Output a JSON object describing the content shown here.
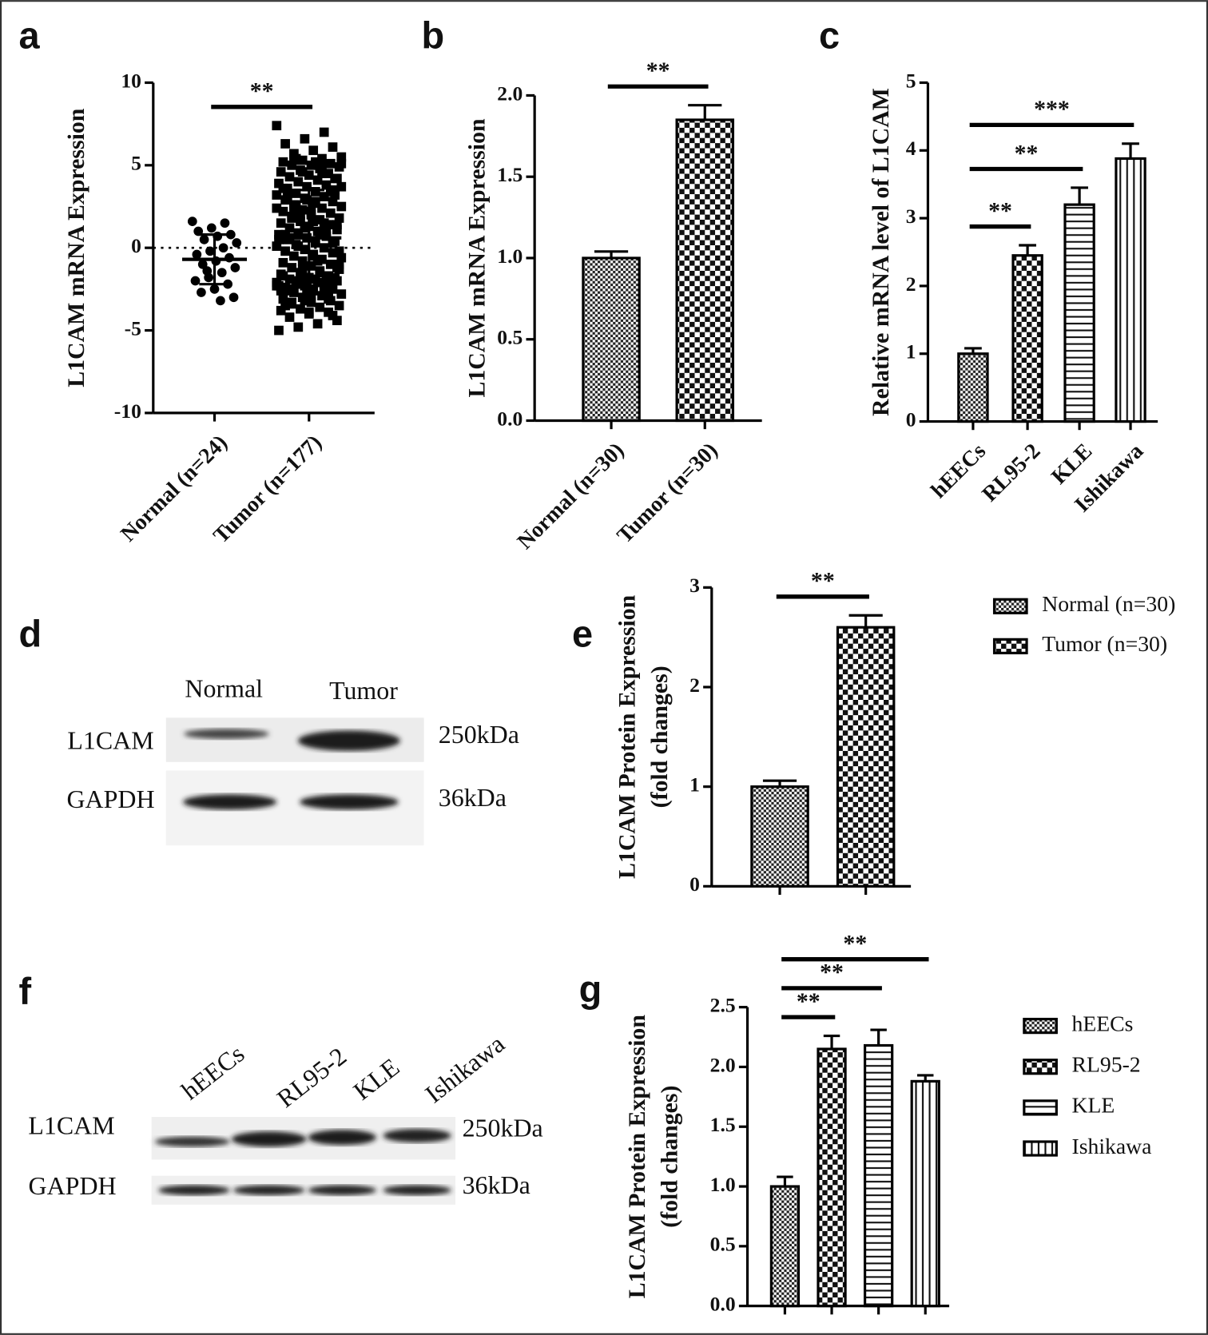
{
  "chart_data": [
    {
      "type": "scatter",
      "label": "a",
      "ylabel": [
        "L1CAM mRNA Expression"
      ],
      "categories": [
        "Normal (n=24)",
        "Tumor (n=177)"
      ],
      "markers": [
        "circle",
        "square"
      ],
      "color": "#000000",
      "groups": [
        {
          "values": [
            1.6,
            1.5,
            1.2,
            1.0,
            0.8,
            0.7,
            0.5,
            0.3,
            0.0,
            -0.2,
            -0.4,
            -0.6,
            -0.8,
            -1.0,
            -1.2,
            -1.5,
            -1.8,
            -2.0,
            -2.2,
            -2.5,
            -2.7,
            -3.0,
            -3.2,
            -1.4
          ],
          "mean": -0.7,
          "sd": 1.5
        },
        {
          "values": [
            7.4,
            7.0,
            6.6,
            6.3,
            6.1,
            5.9,
            5.7,
            5.5,
            5.4,
            5.3,
            5.2,
            5.1,
            5.0,
            5.0,
            4.9,
            4.8,
            4.7,
            4.6,
            4.5,
            4.4,
            4.3,
            4.2,
            4.1,
            4.0,
            3.9,
            3.8,
            3.7,
            3.6,
            3.5,
            3.4,
            3.3,
            3.2,
            3.1,
            3.0,
            2.9,
            2.8,
            2.7,
            2.6,
            2.5,
            2.4,
            2.3,
            2.2,
            2.1,
            2.0,
            1.9,
            1.8,
            1.7,
            1.6,
            1.5,
            1.4,
            1.3,
            1.2,
            1.1,
            1.0,
            0.9,
            0.8,
            0.7,
            0.6,
            0.5,
            0.4,
            0.3,
            0.2,
            0.1,
            0.0,
            -0.1,
            -0.2,
            -0.3,
            -0.4,
            -0.5,
            -0.6,
            -0.7,
            -0.8,
            -0.9,
            -1.0,
            -1.1,
            -1.2,
            -1.3,
            -1.4,
            -1.5,
            -1.6,
            -1.7,
            -1.8,
            -1.9,
            -2.0,
            -2.1,
            -2.2,
            -2.3,
            -2.4,
            -2.5,
            -2.6,
            -1.8,
            -1.9,
            -2.0,
            -2.1,
            -2.2,
            -2.3,
            -2.4,
            -2.5,
            -2.6,
            -2.7,
            -2.8,
            -2.9,
            -3.0,
            -3.1,
            -3.2,
            -3.3,
            -3.4,
            -3.5,
            -3.6,
            -3.7,
            -3.8,
            -3.9,
            -4.0,
            -4.2,
            -4.4,
            -4.6,
            -4.8,
            -5.0,
            -2.0,
            -2.2,
            3.0,
            3.2,
            2.8,
            2.6,
            2.4,
            1.5,
            1.2,
            0.8,
            0.3,
            -0.5,
            5.3,
            5.1,
            4.9,
            4.6,
            3.6,
            3.4,
            2.2,
            1.8,
            -1.0,
            -1.5,
            -2.0,
            -2.4,
            -2.8,
            -3.0,
            -2.5,
            -1.2,
            -0.8,
            0.1,
            0.5,
            1.0,
            2.9,
            3.3,
            4.2,
            5.2,
            5.4,
            -2.3,
            -2.7,
            -3.2,
            -3.5,
            -4.1,
            1.6,
            2.4,
            3.7,
            4.5,
            -1.3,
            -1.7,
            -2.1,
            -2.9,
            -3.3,
            -0.2,
            0.9,
            2.0,
            -2.6,
            -3.1,
            -3.9,
            0.6,
            1.4
          ],
          "mean": 0.6,
          "sd": 2.9
        }
      ],
      "reference_line": 0,
      "ylim": [
        -10,
        10
      ],
      "yticks": [
        -10,
        -5,
        0,
        5,
        10
      ],
      "annotations": [
        {
          "text": "**",
          "between": [
            "Normal (n=24)",
            "Tumor (n=177)"
          ]
        }
      ]
    },
    {
      "type": "bar",
      "label": "b",
      "ylabel": [
        "L1CAM mRNA Expression"
      ],
      "categories": [
        "Normal (n=30)",
        "Tumor (n=30)"
      ],
      "values": [
        1.0,
        1.85
      ],
      "errors": [
        0.04,
        0.09
      ],
      "patterns": [
        "checker-fine",
        "checker-coarse"
      ],
      "ylim": [
        0,
        2
      ],
      "yticks": [
        {
          "value": 0,
          "label": "0.0"
        },
        0.5,
        {
          "value": 1,
          "label": "1.0"
        },
        1.5,
        {
          "value": 2,
          "label": "2.0"
        }
      ],
      "annotations": [
        {
          "text": "**",
          "between": [
            "Normal (n=30)",
            "Tumor (n=30)"
          ]
        }
      ]
    },
    {
      "type": "bar",
      "label": "c",
      "ylabel": [
        "Relative mRNA level of L1CAM"
      ],
      "categories": [
        "hEECs",
        "RL95-2",
        "KLE",
        "Ishikawa"
      ],
      "values": [
        1.0,
        2.45,
        3.2,
        3.88
      ],
      "errors": [
        0.08,
        0.15,
        0.25,
        0.22
      ],
      "patterns": [
        "checker-fine",
        "checker-coarse",
        "hlines",
        "vlines"
      ],
      "ylim": [
        0,
        5
      ],
      "yticks": [
        0,
        1,
        2,
        3,
        4,
        5
      ],
      "annotations": [
        {
          "text": "**",
          "between": [
            "hEECs",
            "RL95-2"
          ]
        },
        {
          "text": "**",
          "between": [
            "hEECs",
            "KLE"
          ]
        },
        {
          "text": "***",
          "between": [
            "hEECs",
            "Ishikawa"
          ]
        }
      ]
    },
    {
      "type": "bar",
      "label": "e",
      "ylabel": [
        "L1CAM Protein Expression",
        "(fold changes)"
      ],
      "legend": "right",
      "categories": [
        "Normal (n=30)",
        "Tumor (n=30)"
      ],
      "values": [
        1.0,
        2.6
      ],
      "errors": [
        0.06,
        0.12
      ],
      "patterns": [
        "checker-fine",
        "checker-coarse"
      ],
      "ylim": [
        0,
        3
      ],
      "yticks": [
        0,
        1,
        2,
        3
      ],
      "annotations": [
        {
          "text": "**",
          "between": [
            "Normal (n=30)",
            "Tumor (n=30)"
          ]
        }
      ]
    },
    {
      "type": "bar",
      "label": "g",
      "ylabel": [
        "L1CAM Protein Expression",
        "(fold changes)"
      ],
      "legend": "right",
      "categories": [
        "hEECs",
        "RL95-2",
        "KLE",
        "Ishikawa"
      ],
      "values": [
        1.0,
        2.15,
        2.18,
        1.88
      ],
      "errors": [
        0.08,
        0.11,
        0.13,
        0.05
      ],
      "patterns": [
        "checker-fine",
        "checker-coarse",
        "hlines",
        "vlines"
      ],
      "ylim": [
        0,
        2.5
      ],
      "yticks": [
        {
          "value": 0,
          "label": "0.0"
        },
        0.5,
        {
          "value": 1,
          "label": "1.0"
        },
        1.5,
        {
          "value": 2,
          "label": "2.0"
        },
        2.5
      ],
      "annotations": [
        {
          "text": "**",
          "between": [
            "hEECs",
            "RL95-2"
          ]
        },
        {
          "text": "**",
          "between": [
            "hEECs",
            "KLE"
          ]
        },
        {
          "text": "**",
          "between": [
            "hEECs",
            "Ishikawa"
          ]
        }
      ]
    }
  ],
  "blots": [
    {
      "label": "d",
      "lanes": [
        "Normal",
        "Tumor"
      ],
      "rows": [
        {
          "protein": "L1CAM",
          "size": "250kDa"
        },
        {
          "protein": "GAPDH",
          "size": "36kDa"
        }
      ]
    },
    {
      "label": "f",
      "lanes": [
        "hEECs",
        "RL95-2",
        "KLE",
        "Ishikawa"
      ],
      "rows": [
        {
          "protein": "L1CAM",
          "size": "250kDa"
        },
        {
          "protein": "GAPDH",
          "size": "36kDa"
        }
      ]
    }
  ]
}
